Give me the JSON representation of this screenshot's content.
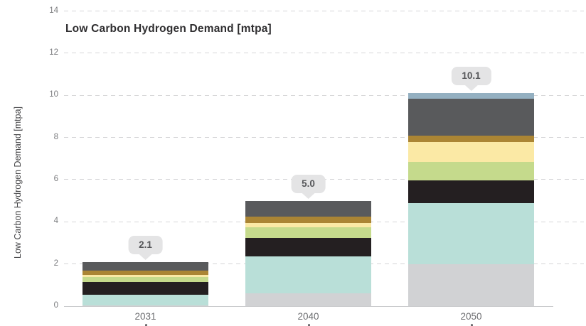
{
  "title": "Low Carbon Hydrogen Demand [mtpa]",
  "y_axis": {
    "label": "Low Carbon Hydrogen Demand [mtpa]",
    "ticks": [
      0,
      2,
      4,
      6,
      8,
      10,
      12,
      14
    ]
  },
  "x_axis": {
    "labels": [
      "2031",
      "2040",
      "2050"
    ]
  },
  "callouts": {
    "labels": [
      "2.1",
      "5.0",
      "10.1"
    ],
    "background": "#e4e4e5",
    "text_color": "#56575a"
  },
  "chart_data": {
    "type": "bar",
    "stacked": true,
    "title": "Low Carbon Hydrogen Demand [mtpa]",
    "ylabel": "Low Carbon Hydrogen Demand [mtpa]",
    "xlabel": "",
    "categories": [
      "2031",
      "2040",
      "2050"
    ],
    "totals": [
      2.1,
      5.0,
      10.1
    ],
    "series": [
      {
        "name": "light-gray",
        "color": "#d1d2d4",
        "values": [
          0.05,
          0.6,
          2.0
        ]
      },
      {
        "name": "pale-teal",
        "color": "#b9dfd8",
        "values": [
          0.5,
          1.75,
          2.9
        ]
      },
      {
        "name": "black",
        "color": "#241f21",
        "values": [
          0.6,
          0.9,
          1.05
        ]
      },
      {
        "name": "light-green",
        "color": "#c5da8c",
        "values": [
          0.25,
          0.5,
          0.9
        ]
      },
      {
        "name": "pale-yellow",
        "color": "#fbe9a5",
        "values": [
          0.1,
          0.2,
          0.95
        ]
      },
      {
        "name": "ochre-brown",
        "color": "#ab8534",
        "values": [
          0.2,
          0.3,
          0.3
        ]
      },
      {
        "name": "dark-gray",
        "color": "#595a5c",
        "values": [
          0.4,
          0.75,
          1.75
        ]
      },
      {
        "name": "steel-blue",
        "color": "#94b0c1",
        "values": [
          0.0,
          0.0,
          0.25
        ]
      }
    ],
    "ylim": [
      0,
      14
    ],
    "grid": "dashed-horizontal",
    "legend": "none"
  }
}
